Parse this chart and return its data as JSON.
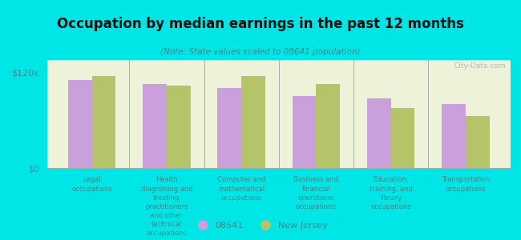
{
  "title": "Occupation by median earnings in the past 12 months",
  "subtitle": "(Note: State values scaled to 08641 population)",
  "background_color": "#00e5e5",
  "plot_bg_color": "#eef2d8",
  "categories": [
    "Legal\noccupations",
    "Health\ndiagnosing and\ntreating\npractitioners\nand other\ntechnical\noccupations",
    "Computer and\nmathematical\noccupations",
    "Business and\nfinancial\noperations\noccupations",
    "Education,\ntraining, and\nlibrary\noccupations",
    "Transportation\noccupations"
  ],
  "values_08641": [
    110000,
    105000,
    100000,
    90000,
    87000,
    80000
  ],
  "values_nj": [
    115000,
    103000,
    115000,
    105000,
    75000,
    65000
  ],
  "color_08641": "#c9a0dc",
  "color_nj": "#b5c468",
  "yticks": [
    0,
    120000
  ],
  "ytick_labels": [
    "$0",
    "$120k"
  ],
  "legend_08641": "08641",
  "legend_nj": "New Jersey",
  "watermark": "City-Data.com",
  "ylim_max": 135000,
  "title_color": "#111111",
  "subtitle_color": "#3a8a8a",
  "label_color": "#3a8a8a"
}
